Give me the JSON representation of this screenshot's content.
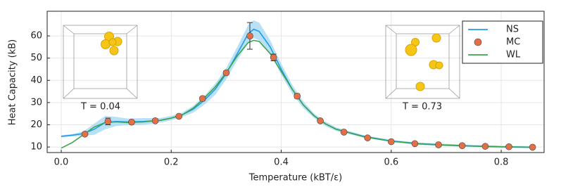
{
  "chart_data": {
    "type": "line",
    "x_label": "Temperature (kBT/ε)",
    "y_label": "Heat Capacity (kB)",
    "xlim": [
      -0.0256,
      0.878
    ],
    "ylim": [
      7.5,
      71.1
    ],
    "xticks": [
      {
        "value": 0,
        "label": "0.0"
      },
      0.2,
      0.4,
      0.6,
      0.8
    ],
    "yticks": [
      10,
      20,
      30,
      40,
      50,
      60
    ],
    "grid": true,
    "legend": "top-right",
    "annotations": [
      "T = 0.04",
      "T = 0.73"
    ],
    "series": [
      {
        "name": "NS",
        "color": "#1e9ee6",
        "band_color": "#a6d8f5",
        "x": [
          0,
          0.02,
          0.04,
          0.06,
          0.08,
          0.1,
          0.12,
          0.15,
          0.18,
          0.2,
          0.22,
          0.24,
          0.26,
          0.28,
          0.3,
          0.32,
          0.34,
          0.35,
          0.36,
          0.38,
          0.4,
          0.42,
          0.44,
          0.46,
          0.48,
          0.5,
          0.55,
          0.6,
          0.65,
          0.7,
          0.75,
          0.8,
          0.86
        ],
        "values": [
          14.8,
          15.3,
          16,
          18,
          21,
          21.5,
          21.3,
          21.5,
          22,
          23,
          24.5,
          27,
          31,
          36,
          43,
          52,
          61,
          63,
          62,
          55,
          45,
          36,
          29,
          24,
          20.5,
          18,
          14.8,
          12.7,
          11.5,
          10.9,
          10.4,
          10.1,
          9.9
        ],
        "upper": [
          15.3,
          15.8,
          17,
          20.5,
          24,
          23.5,
          22.8,
          23,
          23,
          24,
          25.5,
          28.5,
          33,
          38.5,
          45.5,
          55,
          65,
          67,
          66,
          58,
          47.5,
          38,
          30.5,
          25,
          21.5,
          18.8,
          15.3,
          13.2,
          12,
          11.4,
          10.9,
          10.6,
          10.4
        ],
        "lower": [
          14.3,
          14.8,
          15,
          15.5,
          18,
          19.5,
          19.8,
          20,
          21,
          22,
          23.5,
          25.5,
          29,
          33.5,
          40.5,
          49,
          57,
          59,
          58,
          52,
          42.5,
          34,
          27.5,
          23,
          19.5,
          17.2,
          14.3,
          12.2,
          11,
          10.4,
          9.9,
          9.6,
          9.4
        ]
      },
      {
        "name": "MC",
        "color": "#e26f46",
        "markers": true,
        "x": [
          0.043,
          0.085,
          0.128,
          0.171,
          0.214,
          0.257,
          0.3,
          0.343,
          0.386,
          0.429,
          0.471,
          0.514,
          0.557,
          0.6,
          0.643,
          0.686,
          0.729,
          0.771,
          0.814,
          0.857
        ],
        "values": [
          15.8,
          21.5,
          21.2,
          21.8,
          23.8,
          31.8,
          43.4,
          60,
          50.3,
          32.9,
          21.8,
          16.7,
          14.1,
          12.4,
          11.5,
          11,
          10.6,
          10.3,
          10.1,
          9.9
        ],
        "errors": [
          0.5,
          1.5,
          0.5,
          0.5,
          0.5,
          0.8,
          0.8,
          6,
          1.5,
          1,
          0.5,
          0.3,
          0.3,
          0.3,
          0.3,
          0.3,
          0.3,
          0.3,
          0.3,
          0.3
        ]
      },
      {
        "name": "WL",
        "color": "#3da44d",
        "x": [
          0,
          0.02,
          0.04,
          0.06,
          0.08,
          0.1,
          0.12,
          0.15,
          0.18,
          0.2,
          0.22,
          0.24,
          0.26,
          0.28,
          0.3,
          0.32,
          0.34,
          0.35,
          0.36,
          0.38,
          0.4,
          0.42,
          0.44,
          0.46,
          0.48,
          0.5,
          0.55,
          0.6,
          0.65,
          0.7,
          0.75,
          0.8,
          0.86
        ],
        "values": [
          9.5,
          12,
          15.5,
          19,
          21,
          21.3,
          21,
          21.3,
          22,
          23,
          24.5,
          27.5,
          32,
          37,
          43.5,
          51,
          57,
          58,
          57.5,
          52,
          44,
          36,
          29,
          24,
          20.5,
          18,
          14.6,
          12.6,
          11.4,
          10.8,
          10.4,
          10.1,
          9.9
        ]
      }
    ]
  }
}
